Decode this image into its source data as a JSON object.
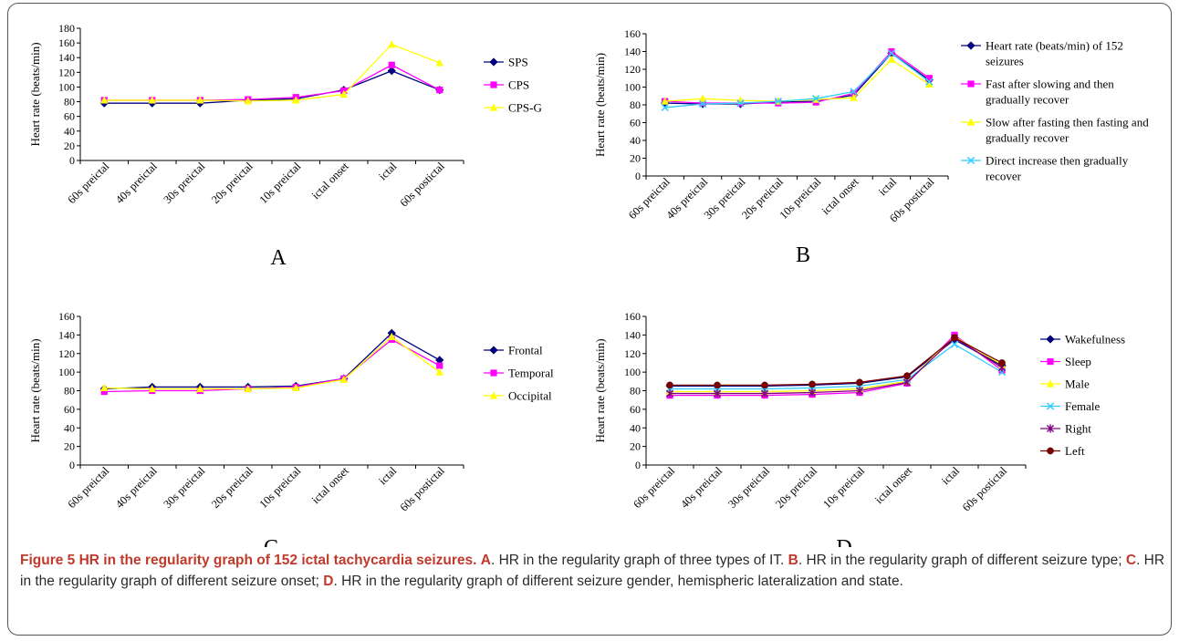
{
  "caption": {
    "label": "Figure 5",
    "title": "HR in the regularity graph of 152 ictal tachycardia seizures.",
    "parts": [
      {
        "tag": "A",
        "text": ". HR in the regularity graph of three types of IT. "
      },
      {
        "tag": "B",
        "text": ". HR in the regularity graph of different seizure type; "
      },
      {
        "tag": "C",
        "text": ". HR in the regularity graph of different seizure onset; "
      },
      {
        "tag": "D",
        "text": ". HR in the regularity graph of different seizure gender, hemispheric lateralization and state."
      }
    ]
  },
  "chart_data": [
    {
      "panel": "A",
      "type": "line",
      "ylabel": "Heart rate (beats/min)",
      "ylim": [
        0,
        180
      ],
      "ytick_step": 20,
      "categories": [
        "60s preictal",
        "40s preictal",
        "30s preictal",
        "20s preictal",
        "10s preictal",
        "ictal onset",
        "ictal",
        "60s postictal"
      ],
      "legend": "right",
      "series": [
        {
          "name": "SPS",
          "color": "#000080",
          "marker": "diamond",
          "values": [
            78,
            78,
            78,
            82,
            84,
            96,
            122,
            96
          ]
        },
        {
          "name": "CPS",
          "color": "#ff00ff",
          "marker": "square",
          "values": [
            82,
            82,
            82,
            83,
            86,
            95,
            130,
            96
          ]
        },
        {
          "name": "CPS-G",
          "color": "#ffff00",
          "marker": "triangle",
          "values": [
            82,
            82,
            82,
            81,
            82,
            90,
            158,
            133
          ]
        }
      ]
    },
    {
      "panel": "B",
      "type": "line",
      "ylabel": "Heart rate (beats/min)",
      "ylim": [
        0,
        160
      ],
      "ytick_step": 20,
      "categories": [
        "60s preictal",
        "40s preictal",
        "30s preictal",
        "20s preictal",
        "10s preictal",
        "ictal onset",
        "ictal",
        "60s postictal"
      ],
      "legend": "right",
      "series": [
        {
          "name": "Heart rate (beats/min) of 152 seizures",
          "color": "#000080",
          "marker": "diamond",
          "values": [
            82,
            81,
            81,
            83,
            84,
            91,
            138,
            108
          ]
        },
        {
          "name": "Fast after slowing and then gradually recover",
          "color": "#ff00ff",
          "marker": "square",
          "values": [
            84,
            82,
            82,
            82,
            83,
            93,
            140,
            110
          ]
        },
        {
          "name": "Slow after fasting then fasting and gradually recover",
          "color": "#ffff00",
          "marker": "triangle",
          "values": [
            84,
            87,
            85,
            84,
            86,
            88,
            131,
            103
          ]
        },
        {
          "name": "Direct increase then gradually recover",
          "color": "#33ccff",
          "marker": "x",
          "values": [
            77,
            81,
            82,
            84,
            87,
            95,
            138,
            106
          ]
        }
      ]
    },
    {
      "panel": "C",
      "type": "line",
      "ylabel": "Heart rate (beats/min)",
      "ylim": [
        0,
        160
      ],
      "ytick_step": 20,
      "categories": [
        "60s preictal",
        "40s preictal",
        "30s preictal",
        "20s preictal",
        "10s preictal",
        "ictal onset",
        "ictal",
        "60s postictal"
      ],
      "legend": "right",
      "series": [
        {
          "name": "Frontal",
          "color": "#000080",
          "marker": "diamond",
          "values": [
            82,
            84,
            84,
            84,
            85,
            93,
            142,
            113
          ]
        },
        {
          "name": "Temporal",
          "color": "#ff00ff",
          "marker": "square",
          "values": [
            79,
            80,
            80,
            82,
            84,
            93,
            135,
            107
          ]
        },
        {
          "name": "Occipital",
          "color": "#ffff00",
          "marker": "triangle",
          "values": [
            83,
            82,
            82,
            82,
            83,
            92,
            138,
            100
          ]
        }
      ]
    },
    {
      "panel": "D",
      "type": "line",
      "ylabel": "Heart rate (beats/min)",
      "ylim": [
        0,
        160
      ],
      "ytick_step": 20,
      "categories": [
        "60s preictal",
        "40s preictal",
        "30s preictal",
        "20s preictal",
        "10s preictal",
        "ictal onset",
        "ictal",
        "60s postictal"
      ],
      "legend": "right",
      "series": [
        {
          "name": "Wakefulness",
          "color": "#000080",
          "marker": "diamond",
          "values": [
            85,
            85,
            85,
            86,
            88,
            95,
            135,
            107
          ]
        },
        {
          "name": "Sleep",
          "color": "#ff00ff",
          "marker": "square",
          "values": [
            75,
            75,
            75,
            76,
            78,
            88,
            140,
            102
          ]
        },
        {
          "name": "Male",
          "color": "#ffff00",
          "marker": "triangle",
          "values": [
            79,
            79,
            79,
            80,
            82,
            90,
            138,
            108
          ]
        },
        {
          "name": "Female",
          "color": "#33ccff",
          "marker": "x",
          "values": [
            82,
            82,
            82,
            83,
            85,
            92,
            130,
            100
          ]
        },
        {
          "name": "Right",
          "color": "#800080",
          "marker": "star",
          "values": [
            77,
            77,
            77,
            78,
            80,
            89,
            137,
            105
          ]
        },
        {
          "name": "Left",
          "color": "#800000",
          "marker": "circle",
          "values": [
            86,
            86,
            86,
            87,
            89,
            96,
            137,
            110
          ]
        }
      ]
    }
  ]
}
